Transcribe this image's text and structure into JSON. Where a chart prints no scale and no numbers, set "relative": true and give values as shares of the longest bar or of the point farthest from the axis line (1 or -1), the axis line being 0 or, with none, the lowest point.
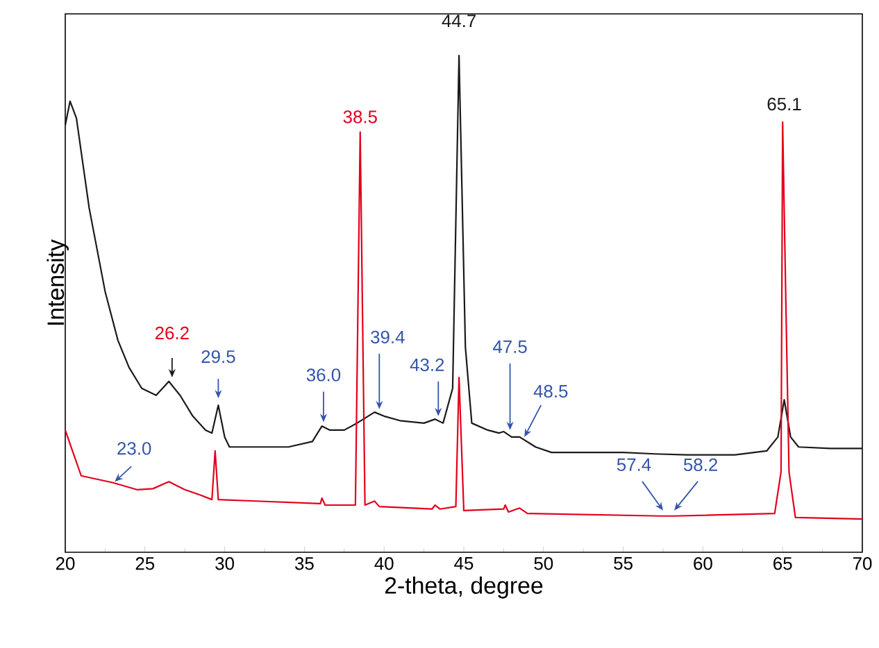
{
  "chart_data": {
    "type": "line",
    "relative": true,
    "xlabel": "2-theta, degree",
    "ylabel": "Intensity",
    "xlim": [
      20,
      70
    ],
    "xticks": [
      20,
      25,
      30,
      35,
      40,
      45,
      50,
      55,
      60,
      65,
      70
    ],
    "grid": false,
    "marker": "none",
    "line_style": "solid",
    "series": [
      {
        "color": "#1a1a1a",
        "x": [
          20.0,
          20.3,
          20.7,
          21.5,
          22.5,
          23.3,
          24.0,
          24.8,
          25.7,
          26.5,
          27.2,
          28.0,
          28.8,
          29.2,
          29.6,
          30.0,
          30.3,
          32,
          34,
          35.5,
          36.1,
          36.6,
          37.5,
          38.3,
          39.4,
          40.0,
          41.0,
          42.5,
          43.2,
          43.7,
          44.3,
          44.7,
          45.1,
          45.5,
          46.5,
          47.2,
          47.5,
          48.0,
          48.5,
          49.5,
          50.5,
          52,
          55,
          57,
          59,
          62,
          64,
          64.7,
          65.1,
          65.5,
          66,
          68,
          70
        ],
        "values": [
          0.86,
          0.908,
          0.874,
          0.693,
          0.525,
          0.427,
          0.372,
          0.33,
          0.316,
          0.344,
          0.316,
          0.274,
          0.246,
          0.24,
          0.296,
          0.232,
          0.212,
          0.212,
          0.212,
          0.223,
          0.254,
          0.246,
          0.246,
          0.26,
          0.282,
          0.274,
          0.265,
          0.26,
          0.268,
          0.26,
          0.33,
          1.0,
          0.413,
          0.26,
          0.246,
          0.24,
          0.243,
          0.232,
          0.232,
          0.212,
          0.201,
          0.201,
          0.201,
          0.198,
          0.196,
          0.196,
          0.204,
          0.232,
          0.307,
          0.232,
          0.212,
          0.209,
          0.209
        ]
      },
      {
        "color": "#e3001b",
        "x": [
          20.0,
          20.3,
          21,
          23.0,
          24.5,
          25.5,
          26.5,
          27.5,
          28.5,
          29.2,
          29.4,
          29.6,
          32,
          36,
          36.1,
          36.3,
          38.2,
          38.5,
          38.8,
          39.4,
          39.7,
          43,
          43.2,
          43.5,
          44.5,
          44.7,
          45.0,
          47.5,
          47.6,
          47.8,
          48.5,
          49,
          57.4,
          58.2,
          64.5,
          64.9,
          65.0,
          65.2,
          65.4,
          65.8,
          70
        ],
        "values": [
          0.246,
          0.218,
          0.154,
          0.14,
          0.126,
          0.128,
          0.142,
          0.126,
          0.115,
          0.106,
          0.204,
          0.106,
          0.103,
          0.098,
          0.109,
          0.095,
          0.095,
          0.846,
          0.095,
          0.103,
          0.092,
          0.087,
          0.095,
          0.087,
          0.092,
          0.352,
          0.084,
          0.087,
          0.095,
          0.081,
          0.089,
          0.078,
          0.073,
          0.073,
          0.078,
          0.162,
          0.866,
          0.506,
          0.162,
          0.07,
          0.067
        ]
      }
    ],
    "annotations": [
      {
        "text": "23.0",
        "x": 23.1,
        "y": 0.142
      },
      {
        "text": "26.2",
        "x": 26.7,
        "y": 0.352
      },
      {
        "text": "29.5",
        "x": 29.6,
        "y": 0.31
      },
      {
        "text": "36.0",
        "x": 36.2,
        "y": 0.262
      },
      {
        "text": "39.4",
        "x": 39.7,
        "y": 0.288
      },
      {
        "text": "43.2",
        "x": 43.4,
        "y": 0.274
      },
      {
        "text": "47.5",
        "x": 47.9,
        "y": 0.246
      },
      {
        "text": "48.5",
        "x": 48.8,
        "y": 0.232
      },
      {
        "text": "57.4",
        "x": 57.5,
        "y": 0.084
      },
      {
        "text": "58.2",
        "x": 58.2,
        "y": 0.084
      },
      {
        "text": "44.7",
        "x": 44.7,
        "y": 1.0
      },
      {
        "text": "38.5",
        "x": 38.5,
        "y": 0.846
      },
      {
        "text": "65.1",
        "x": 65.1,
        "y": 0.866
      }
    ]
  }
}
